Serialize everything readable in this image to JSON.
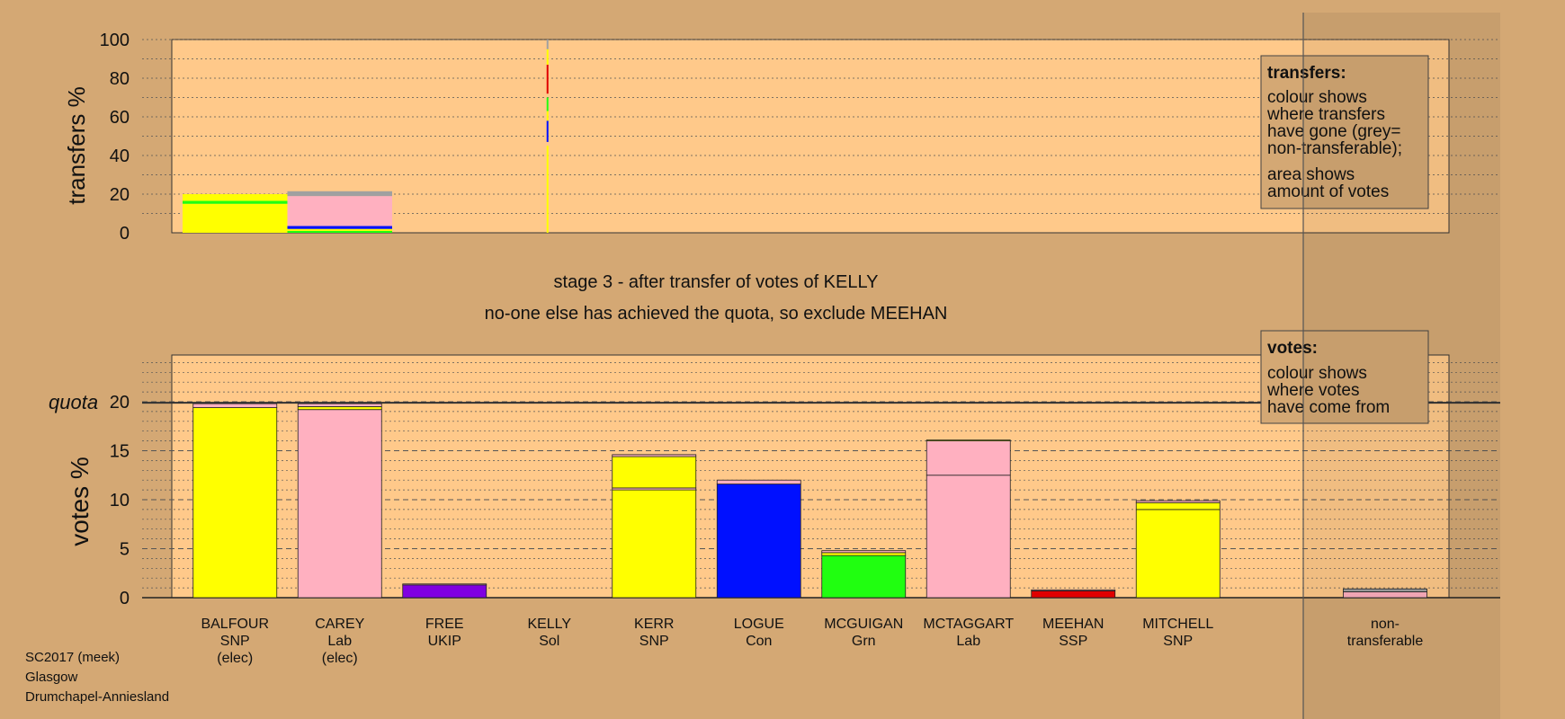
{
  "colors": {
    "background": "#d4a874",
    "panel": "#ffc98a",
    "snp": "#ffff00",
    "lab": "#ffb0c0",
    "ukip": "#8000e0",
    "con": "#0010ff",
    "grn": "#20ff10",
    "ssp": "#e00000",
    "sol": "#ffb0c0",
    "nontransferable": "#ffb0c0",
    "grey": "#a0a0a0"
  },
  "titles": {
    "stage": "stage 3 - after transfer of votes of KELLY",
    "action": "no-one else has achieved the quota, so exclude MEEHAN"
  },
  "footer": [
    "SC2017 (meek)",
    "Glasgow",
    "Drumchapel-Anniesland"
  ],
  "transfers_legend": {
    "title": "transfers:",
    "lines1": [
      "colour shows",
      "where transfers",
      "have gone (grey=",
      "non-transferable);"
    ],
    "lines2": [
      "area shows",
      "amount of votes"
    ]
  },
  "votes_legend": {
    "title": "votes:",
    "lines": [
      "colour shows",
      "where votes",
      "have come from"
    ]
  },
  "chart_data": [
    {
      "type": "bar",
      "ylabel": "transfers %",
      "ylim": [
        0,
        100
      ],
      "yticks": [
        0,
        20,
        40,
        60,
        80,
        100
      ],
      "transfers": [
        {
          "candidate": "BALFOUR",
          "total": 20,
          "segments": [
            {
              "party": "snp",
              "value": 15
            },
            {
              "party": "grn",
              "value": 1.5
            },
            {
              "party": "snp",
              "value": 3.5
            }
          ]
        },
        {
          "candidate": "CAREY",
          "total": 21.5,
          "segments": [
            {
              "party": "grn",
              "value": 1
            },
            {
              "party": "snp",
              "value": 1
            },
            {
              "party": "con",
              "value": 1.5
            },
            {
              "party": "lab",
              "value": 15.5
            },
            {
              "party": "grey",
              "value": 2.5
            }
          ]
        }
      ],
      "kelly_line": [
        {
          "party": "snp",
          "from": 0,
          "to": 45
        },
        {
          "party": "con",
          "from": 47,
          "to": 58
        },
        {
          "party": "snp",
          "from": 58,
          "to": 63
        },
        {
          "party": "grn",
          "from": 63,
          "to": 70
        },
        {
          "party": "ssp",
          "from": 72,
          "to": 87
        },
        {
          "party": "snp",
          "from": 87,
          "to": 95
        },
        {
          "party": "grey",
          "from": 95,
          "to": 100
        }
      ]
    },
    {
      "type": "bar",
      "ylabel": "votes %",
      "quota_label": "quota",
      "quota": 19.9,
      "ylim": [
        0,
        20
      ],
      "yticks": [
        0,
        5,
        10,
        15,
        20
      ],
      "candidates": [
        {
          "name": "BALFOUR",
          "party": "SNP",
          "status": "(elec)",
          "segments": [
            {
              "c": "snp",
              "v": 19.4
            },
            {
              "c": "lab",
              "v": 0.4
            }
          ]
        },
        {
          "name": "CAREY",
          "party": "Lab",
          "status": "(elec)",
          "segments": [
            {
              "c": "lab",
              "v": 19.2
            },
            {
              "c": "snp",
              "v": 0.3
            },
            {
              "c": "lab",
              "v": 0.3
            }
          ]
        },
        {
          "name": "FREE",
          "party": "UKIP",
          "status": "",
          "segments": [
            {
              "c": "ukip",
              "v": 1.3
            },
            {
              "c": "lab",
              "v": 0.1
            }
          ]
        },
        {
          "name": "KELLY",
          "party": "Sol",
          "status": "",
          "segments": []
        },
        {
          "name": "KERR",
          "party": "SNP",
          "status": "",
          "segments": [
            {
              "c": "snp",
              "v": 11.0
            },
            {
              "c": "lab",
              "v": 0.2
            },
            {
              "c": "snp",
              "v": 3.2
            },
            {
              "c": "lab",
              "v": 0.2
            }
          ]
        },
        {
          "name": "LOGUE",
          "party": "Con",
          "status": "",
          "segments": [
            {
              "c": "con",
              "v": 11.6
            },
            {
              "c": "lab",
              "v": 0.4
            }
          ]
        },
        {
          "name": "MCGUIGAN",
          "party": "Grn",
          "status": "",
          "segments": [
            {
              "c": "grn",
              "v": 4.3
            },
            {
              "c": "snp",
              "v": 0.3
            },
            {
              "c": "lab",
              "v": 0.2
            }
          ]
        },
        {
          "name": "MCTAGGART",
          "party": "Lab",
          "status": "",
          "segments": [
            {
              "c": "lab",
              "v": 12.5
            },
            {
              "c": "lab",
              "v": 3.5
            },
            {
              "c": "snp",
              "v": 0.1
            }
          ]
        },
        {
          "name": "MEEHAN",
          "party": "SSP",
          "status": "",
          "segments": [
            {
              "c": "ssp",
              "v": 0.7
            },
            {
              "c": "lab",
              "v": 0.1
            }
          ]
        },
        {
          "name": "MITCHELL",
          "party": "SNP",
          "status": "",
          "segments": [
            {
              "c": "snp",
              "v": 9.0
            },
            {
              "c": "snp",
              "v": 0.7
            },
            {
              "c": "lab",
              "v": 0.2
            }
          ]
        }
      ],
      "nontransferable": {
        "label1": "non-",
        "label2": "transferable",
        "segments": [
          {
            "c": "lab",
            "v": 0.6
          },
          {
            "c": "grey",
            "v": 0.3
          }
        ]
      }
    }
  ]
}
